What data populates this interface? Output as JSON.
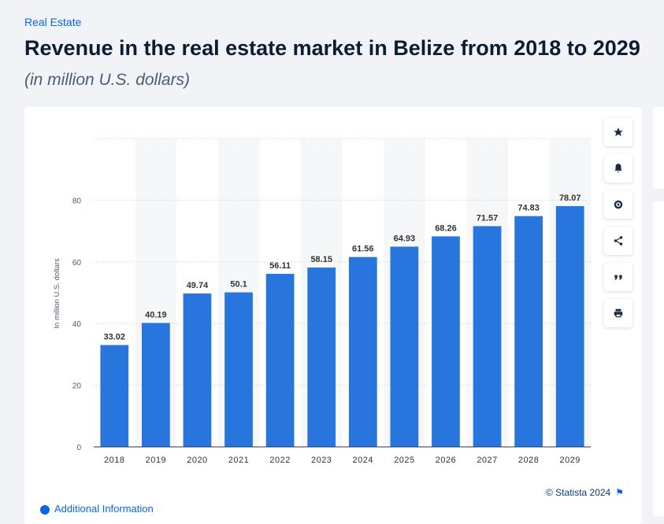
{
  "header": {
    "category": "Real Estate",
    "title": "Revenue in the real estate market in Belize from 2018 to 2029",
    "subtitle": "(in million U.S. dollars)"
  },
  "toolbar": {
    "items": [
      {
        "name": "star-icon"
      },
      {
        "name": "bell-icon"
      },
      {
        "name": "gear-icon"
      },
      {
        "name": "share-icon"
      },
      {
        "name": "quote-icon"
      },
      {
        "name": "print-icon"
      }
    ]
  },
  "footer": {
    "credit": "© Statista 2024",
    "additional_info": "Additional Information"
  },
  "colors": {
    "bar": "#2876dd",
    "accent": "#0666e5",
    "title": "#0c1d33"
  },
  "chart_data": {
    "type": "bar",
    "title": "Revenue in the real estate market in Belize from 2018 to 2029",
    "ylabel": "In million U.S. dollars",
    "xlabel": "",
    "categories": [
      "2018",
      "2019",
      "2020",
      "2021",
      "2022",
      "2023",
      "2024",
      "2025",
      "2026",
      "2027",
      "2028",
      "2029"
    ],
    "values": [
      33.02,
      40.19,
      49.74,
      50.1,
      56.11,
      58.15,
      61.56,
      64.93,
      68.26,
      71.57,
      74.83,
      78.07
    ],
    "ylim": [
      0,
      100
    ],
    "yticks": [
      0,
      20,
      40,
      60,
      80
    ],
    "grid": true
  }
}
